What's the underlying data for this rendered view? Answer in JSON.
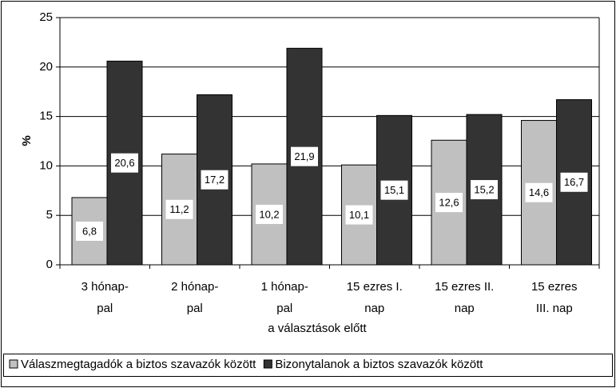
{
  "chart_data": {
    "type": "bar",
    "categories": [
      "3 hónap-\npal",
      "2 hónap-\npal",
      "1 hónap-\npal",
      "15 ezres I.\nnap",
      "15 ezres II.\nnap",
      "15 ezres\nIII. nap"
    ],
    "x_label": "a választások előtt",
    "y_label": "%",
    "series": [
      {
        "name": "Válaszmegtagadók a biztos szavazók között",
        "color": "#c0c0c0",
        "values": [
          6.8,
          11.2,
          10.2,
          10.1,
          12.6,
          14.6
        ],
        "value_labels": [
          "6,8",
          "11,2",
          "10,2",
          "10,1",
          "12,6",
          "14,6"
        ]
      },
      {
        "name": "Bizonytalanok a biztos szavazók között",
        "color": "#333333",
        "values": [
          20.6,
          17.2,
          21.9,
          15.1,
          15.2,
          16.7
        ],
        "value_labels": [
          "20,6",
          "17,2",
          "21,9",
          "15,1",
          "15,2",
          "16,7"
        ]
      }
    ],
    "ylim": [
      0,
      25
    ],
    "yticks": [
      0,
      5,
      10,
      15,
      20,
      25
    ],
    "grid": true,
    "legend": "bottom"
  }
}
